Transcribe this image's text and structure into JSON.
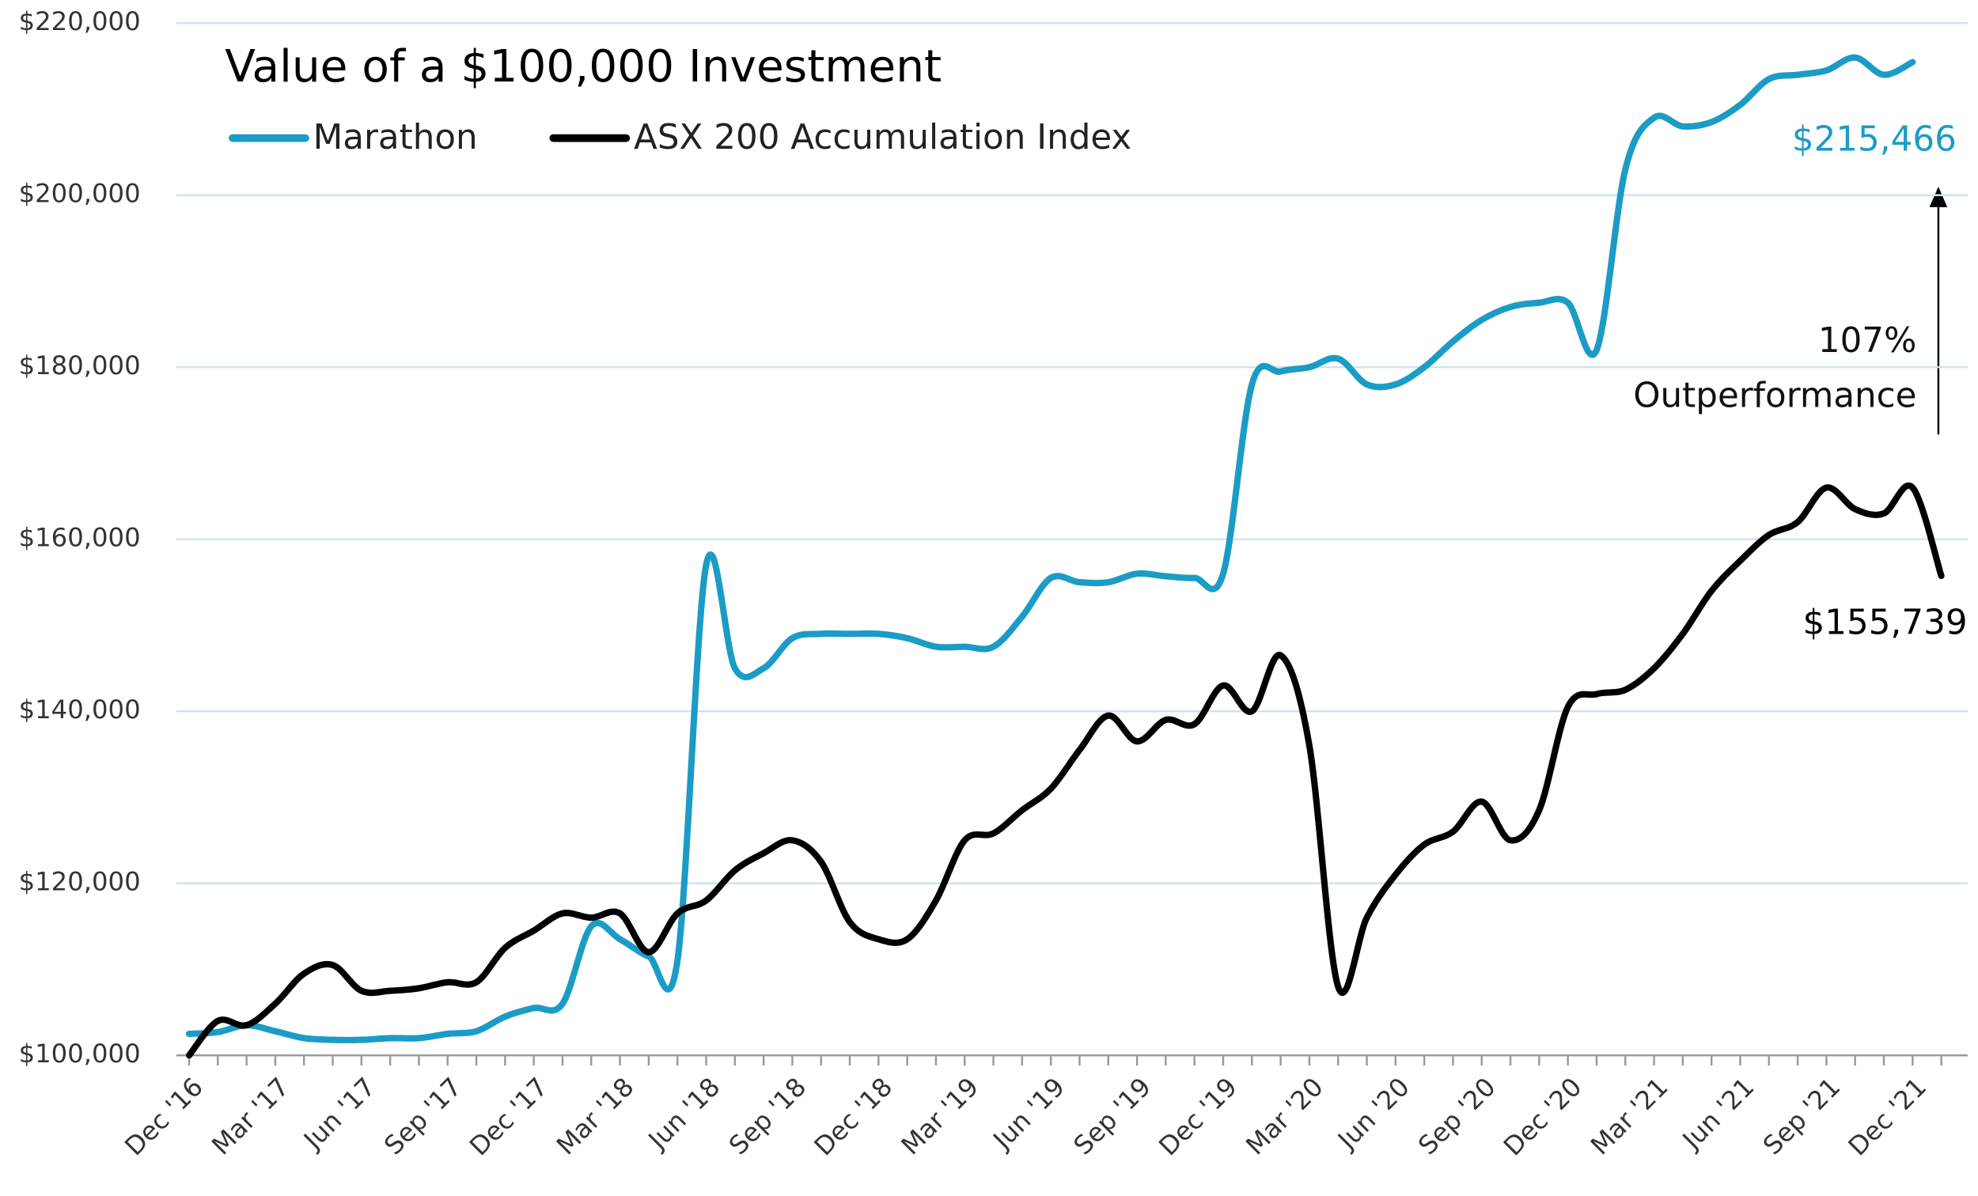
{
  "chart_data": {
    "type": "line",
    "title": "Value of a $100,000 Investment",
    "categories": [
      "Dec '16",
      null,
      null,
      "Mar '17",
      null,
      null,
      "Jun '17",
      null,
      null,
      "Sep '17",
      null,
      null,
      "Dec '17",
      null,
      null,
      "Mar '18",
      null,
      null,
      "Jun '18",
      null,
      null,
      "Sep '18",
      null,
      null,
      "Dec '18",
      null,
      null,
      "Mar '19",
      null,
      null,
      "Jun '19",
      null,
      null,
      "Sep '19",
      null,
      null,
      "Dec '19",
      null,
      null,
      "Mar '20",
      null,
      null,
      "Jun '20",
      null,
      null,
      "Sep '20",
      null,
      null,
      "Dec '20",
      null,
      null,
      "Mar '21",
      null,
      null,
      "Jun '21",
      null,
      null,
      "Sep '21",
      null,
      null,
      "Dec '21",
      null
    ],
    "series": [
      {
        "name": "Marathon",
        "color": "#1b9cc6",
        "values": [
          102500,
          102700,
          103500,
          102800,
          102000,
          101800,
          101800,
          102000,
          102000,
          102500,
          102800,
          104500,
          105500,
          106000,
          115000,
          113500,
          111500,
          111000,
          157000,
          145000,
          145000,
          148500,
          149000,
          149000,
          149000,
          148500,
          147500,
          147500,
          147500,
          151000,
          155500,
          155000,
          155000,
          156000,
          155700,
          155500,
          156000,
          178000,
          179500,
          180000,
          181000,
          178000,
          178000,
          180000,
          183000,
          185500,
          187000,
          187500,
          187500,
          182000,
          203000,
          209000,
          208000,
          208500,
          210500,
          213500,
          214000,
          214500,
          216000,
          214000,
          215466,
          null
        ],
        "value_labels": [
          null,
          null,
          null,
          null,
          null,
          null,
          null,
          null,
          null,
          null,
          null,
          null,
          null,
          null,
          null,
          null,
          null,
          null,
          null,
          null,
          null,
          null,
          null,
          null,
          null,
          null,
          null,
          null,
          null,
          null,
          null,
          null,
          null,
          null,
          null,
          null,
          null,
          null,
          null,
          null,
          null,
          null,
          null,
          null,
          null,
          null,
          null,
          null,
          null,
          null,
          null,
          null,
          null,
          null,
          null,
          null,
          null,
          null,
          null,
          null,
          "$215,466",
          null
        ]
      },
      {
        "name": "ASX 200 Accumulation Index",
        "color": "#000000",
        "values": [
          100000,
          104000,
          103500,
          106000,
          109500,
          110500,
          107500,
          107500,
          107800,
          108500,
          108500,
          112500,
          114500,
          116500,
          116000,
          116500,
          112000,
          116500,
          118000,
          121500,
          123500,
          125000,
          122500,
          115500,
          113500,
          113500,
          118000,
          125000,
          125800,
          128500,
          131000,
          135500,
          139500,
          136500,
          139000,
          138500,
          143000,
          140000,
          146500,
          136000,
          108000,
          116000,
          121000,
          124500,
          126000,
          129500,
          125000,
          128500,
          140500,
          142000,
          142500,
          145000,
          149000,
          154000,
          157500,
          160500,
          162000,
          166000,
          163500,
          163000,
          166000,
          155739
        ],
        "value_labels": [
          null,
          null,
          null,
          null,
          null,
          null,
          null,
          null,
          null,
          null,
          null,
          null,
          null,
          null,
          null,
          null,
          null,
          null,
          null,
          null,
          null,
          null,
          null,
          null,
          null,
          null,
          null,
          null,
          null,
          null,
          null,
          null,
          null,
          null,
          null,
          null,
          null,
          null,
          null,
          null,
          null,
          null,
          null,
          null,
          null,
          null,
          null,
          null,
          null,
          null,
          null,
          null,
          null,
          null,
          null,
          null,
          null,
          null,
          null,
          null,
          null,
          "$155,739"
        ]
      }
    ],
    "annotation": [
      "107%",
      "Outperformance"
    ],
    "ylim": [
      100000,
      220000
    ],
    "yticks": [
      {
        "value": 100000,
        "label": "$100,000"
      },
      {
        "value": 120000,
        "label": "$120,000"
      },
      {
        "value": 140000,
        "label": "$140,000"
      },
      {
        "value": 160000,
        "label": "$160,000"
      },
      {
        "value": 180000,
        "label": "$180,000"
      },
      {
        "value": 200000,
        "label": "$200,000"
      },
      {
        "value": 220000,
        "label": "$220,000"
      }
    ],
    "grid": true
  }
}
